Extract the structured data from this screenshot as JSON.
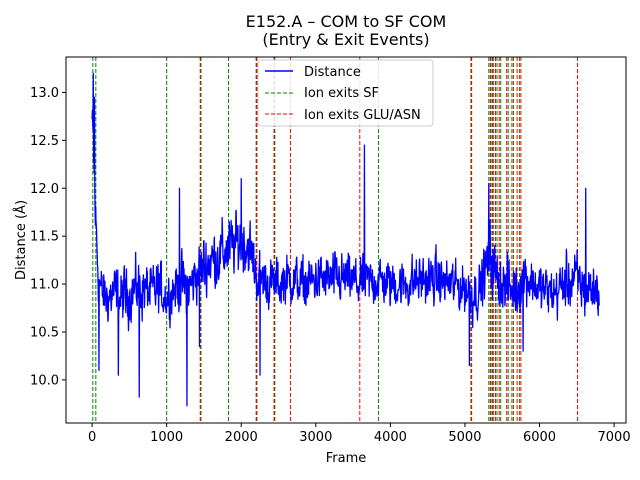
{
  "chart_data": {
    "type": "line",
    "title": "E152.A – COM to SF COM",
    "subtitle": "(Entry & Exit Events)",
    "xlabel": "Frame",
    "ylabel": "Distance (Å)",
    "xlim": [
      -350,
      7160
    ],
    "ylim": [
      9.55,
      13.37
    ],
    "xticks": [
      0,
      1000,
      2000,
      3000,
      4000,
      5000,
      6000,
      7000
    ],
    "yticks": [
      10.0,
      10.5,
      11.0,
      11.5,
      12.0,
      12.5,
      13.0
    ],
    "xtick_labels": [
      "0",
      "1000",
      "2000",
      "3000",
      "4000",
      "5000",
      "6000",
      "7000"
    ],
    "ytick_labels": [
      "10.0",
      "10.5",
      "11.0",
      "11.5",
      "12.0",
      "12.5",
      "13.0"
    ],
    "grid": false,
    "legend_position": "top-center",
    "series": [
      {
        "name": "Distance",
        "color": "#0000ff",
        "style": "solid",
        "frame_count": 6800,
        "envelope": {
          "x": [
            0,
            20,
            50,
            80,
            120,
            200,
            300,
            400,
            500,
            600,
            700,
            800,
            900,
            1000,
            1100,
            1200,
            1300,
            1400,
            1500,
            1600,
            1700,
            1800,
            1900,
            2000,
            2100,
            2200,
            2300,
            2400,
            2500,
            2600,
            2700,
            2800,
            2900,
            3000,
            3200,
            3400,
            3600,
            3800,
            4000,
            4200,
            4400,
            4600,
            4800,
            5000,
            5100,
            5200,
            5300,
            5350,
            5400,
            5500,
            5600,
            5700,
            5800,
            6000,
            6200,
            6400,
            6500,
            6600,
            6700,
            6800
          ],
          "y_center": [
            12.7,
            12.3,
            11.6,
            11.2,
            10.9,
            10.85,
            10.9,
            10.85,
            10.9,
            10.95,
            10.95,
            10.9,
            10.95,
            10.85,
            10.95,
            11.0,
            10.95,
            11.1,
            11.2,
            11.25,
            11.3,
            11.35,
            11.4,
            11.45,
            11.4,
            11.1,
            11.05,
            11.0,
            11.0,
            11.05,
            11.05,
            11.0,
            11.0,
            11.05,
            11.05,
            11.05,
            11.0,
            11.05,
            11.0,
            11.0,
            11.05,
            11.05,
            11.0,
            10.95,
            10.9,
            10.95,
            11.2,
            11.3,
            11.1,
            11.0,
            10.95,
            10.95,
            11.1,
            10.95,
            10.9,
            11.05,
            11.05,
            10.95,
            10.95,
            10.95
          ],
          "y_halfwidth": [
            0.4,
            0.4,
            0.6,
            0.55,
            0.45,
            0.4,
            0.45,
            0.45,
            0.45,
            0.45,
            0.45,
            0.45,
            0.45,
            0.35,
            0.4,
            0.45,
            0.45,
            0.45,
            0.5,
            0.5,
            0.5,
            0.5,
            0.5,
            0.5,
            0.5,
            0.45,
            0.4,
            0.4,
            0.4,
            0.4,
            0.4,
            0.4,
            0.4,
            0.4,
            0.4,
            0.4,
            0.4,
            0.4,
            0.4,
            0.4,
            0.4,
            0.4,
            0.4,
            0.4,
            0.45,
            0.4,
            0.5,
            0.6,
            0.5,
            0.45,
            0.45,
            0.45,
            0.45,
            0.4,
            0.4,
            0.45,
            0.45,
            0.45,
            0.45,
            0.45
          ]
        },
        "spikes": [
          {
            "x": 15,
            "y": 13.2
          },
          {
            "x": 30,
            "y": 12.95
          },
          {
            "x": 90,
            "y": 10.1
          },
          {
            "x": 350,
            "y": 10.05
          },
          {
            "x": 630,
            "y": 9.82
          },
          {
            "x": 1170,
            "y": 12.0
          },
          {
            "x": 1270,
            "y": 9.73
          },
          {
            "x": 1440,
            "y": 10.35
          },
          {
            "x": 2000,
            "y": 12.1
          },
          {
            "x": 2250,
            "y": 10.05
          },
          {
            "x": 3650,
            "y": 12.45
          },
          {
            "x": 5060,
            "y": 10.15
          },
          {
            "x": 5320,
            "y": 12.05
          },
          {
            "x": 5780,
            "y": 10.3
          },
          {
            "x": 6620,
            "y": 12.0
          }
        ]
      },
      {
        "name": "Ion exits SF",
        "color": "#008000",
        "style": "dashed",
        "x": [
          10,
          50,
          1000,
          1460,
          1830,
          2200,
          2450,
          3840,
          5080,
          5320,
          5350,
          5380,
          5430,
          5480,
          5580,
          5650,
          5730
        ]
      },
      {
        "name": "Ion exits GLU/ASN",
        "color": "#ff0000",
        "style": "dashed",
        "x": [
          1450,
          2210,
          2440,
          2660,
          3590,
          5090,
          5340,
          5370,
          5410,
          5460,
          5560,
          5630,
          5700,
          5750,
          6510
        ]
      }
    ]
  }
}
